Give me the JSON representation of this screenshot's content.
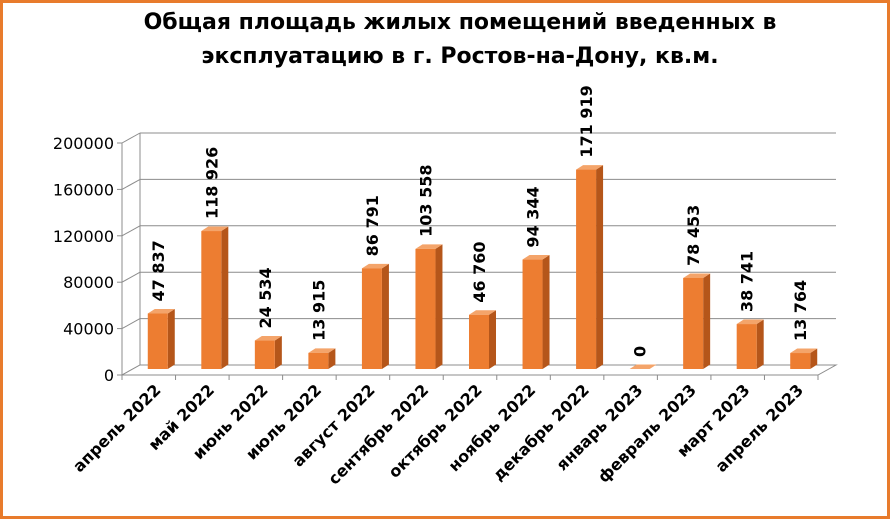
{
  "chart_data": {
    "type": "bar",
    "title_lines": [
      "Общая площадь жилых помещений введенных в",
      "эксплуатацию в г. Ростов-на-Дону, кв.м."
    ],
    "categories": [
      "апрель 2022",
      "май 2022",
      "июнь 2022",
      "июль 2022",
      "август 2022",
      "сентябрь 2022",
      "октябрь 2022",
      "ноябрь 2022",
      "декабрь 2022",
      "январь 2023",
      "февраль 2023",
      "март 2023",
      "апрель 2023"
    ],
    "values": [
      47837,
      118926,
      24534,
      13915,
      86791,
      103558,
      46760,
      94344,
      171919,
      0,
      78453,
      38741,
      13764
    ],
    "data_labels": [
      "47 837",
      "118 926",
      "24 534",
      "13 915",
      "86 791",
      "103 558",
      "46 760",
      "94 344",
      "171 919",
      "0",
      "78 453",
      "38 741",
      "13 764"
    ],
    "yticks": [
      0,
      40000,
      80000,
      120000,
      160000,
      200000
    ],
    "ylim": [
      0,
      200000
    ],
    "grid": true,
    "bar_color": "#ed7d31",
    "bar_side_color": "#b5561a",
    "bar_top_color": "#f4a46a"
  }
}
